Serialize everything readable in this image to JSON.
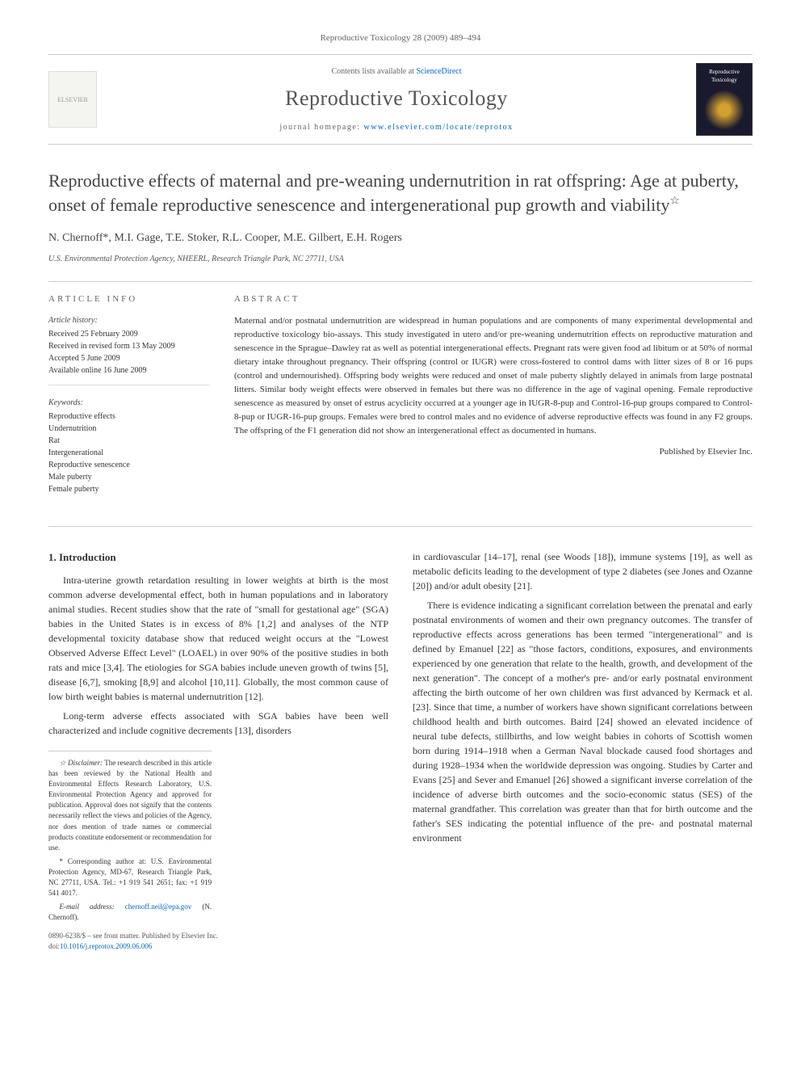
{
  "header": {
    "citation": "Reproductive Toxicology 28 (2009) 489–494",
    "contents_prefix": "Contents lists available at ",
    "contents_link": "ScienceDirect",
    "journal_name": "Reproductive Toxicology",
    "homepage_prefix": "journal homepage: ",
    "homepage_url": "www.elsevier.com/locate/reprotox",
    "publisher_logo_text": "ELSEVIER",
    "cover_label": "Reproductive Toxicology"
  },
  "article": {
    "title": "Reproductive effects of maternal and pre-weaning undernutrition in rat offspring: Age at puberty, onset of female reproductive senescence and intergenerational pup growth and viability",
    "title_marker": "☆",
    "authors": "N. Chernoff*, M.I. Gage, T.E. Stoker, R.L. Cooper, M.E. Gilbert, E.H. Rogers",
    "affiliation": "U.S. Environmental Protection Agency, NHEERL, Research Triangle Park, NC 27711, USA"
  },
  "article_info": {
    "heading": "ARTICLE INFO",
    "history_label": "Article history:",
    "history": [
      "Received 25 February 2009",
      "Received in revised form 13 May 2009",
      "Accepted 5 June 2009",
      "Available online 16 June 2009"
    ],
    "keywords_label": "Keywords:",
    "keywords": [
      "Reproductive effects",
      "Undernutrition",
      "Rat",
      "Intergenerational",
      "Reproductive senescence",
      "Male puberty",
      "Female puberty"
    ]
  },
  "abstract": {
    "heading": "ABSTRACT",
    "text": "Maternal and/or postnatal undernutrition are widespread in human populations and are components of many experimental developmental and reproductive toxicology bio-assays. This study investigated in utero and/or pre-weaning undernutrition effects on reproductive maturation and senescence in the Sprague–Dawley rat as well as potential intergenerational effects. Pregnant rats were given food ad libitum or at 50% of normal dietary intake throughout pregnancy. Their offspring (control or IUGR) were cross-fostered to control dams with litter sizes of 8 or 16 pups (control and undernourished). Offspring body weights were reduced and onset of male puberty slightly delayed in animals from large postnatal litters. Similar body weight effects were observed in females but there was no difference in the age of vaginal opening. Female reproductive senescence as measured by onset of estrus acyclicity occurred at a younger age in IUGR-8-pup and Control-16-pup groups compared to Control-8-pup or IUGR-16-pup groups. Females were bred to control males and no evidence of adverse reproductive effects was found in any F2 groups. The offspring of the F1 generation did not show an intergenerational effect as documented in humans.",
    "publisher": "Published by Elsevier Inc."
  },
  "body": {
    "section1_heading": "1. Introduction",
    "p1": "Intra-uterine growth retardation resulting in lower weights at birth is the most common adverse developmental effect, both in human populations and in laboratory animal studies. Recent studies show that the rate of \"small for gestational age\" (SGA) babies in the United States is in excess of 8% [1,2] and analyses of the NTP developmental toxicity database show that reduced weight occurs at the \"Lowest Observed Adverse Effect Level\" (LOAEL) in over 90% of the positive studies in both rats and mice [3,4]. The etiologies for SGA babies include uneven growth of twins [5], disease [6,7], smoking [8,9] and alcohol [10,11]. Globally, the most common cause of low birth weight babies is maternal undernutrition [12].",
    "p2": "Long-term adverse effects associated with SGA babies have been well characterized and include cognitive decrements [13], disorders",
    "p3": "in cardiovascular [14–17], renal (see Woods [18]), immune systems [19], as well as metabolic deficits leading to the development of type 2 diabetes (see Jones and Ozanne [20]) and/or adult obesity [21].",
    "p4": "There is evidence indicating a significant correlation between the prenatal and early postnatal environments of women and their own pregnancy outcomes. The transfer of reproductive effects across generations has been termed \"intergenerational\" and is defined by Emanuel [22] as \"those factors, conditions, exposures, and environments experienced by one generation that relate to the health, growth, and development of the next generation\". The concept of a mother's pre- and/or early postnatal environment affecting the birth outcome of her own children was first advanced by Kermack et al. [23]. Since that time, a number of workers have shown significant correlations between childhood health and birth outcomes. Baird [24] showed an elevated incidence of neural tube defects, stillbirths, and low weight babies in cohorts of Scottish women born during 1914–1918 when a German Naval blockade caused food shortages and during 1928–1934 when the worldwide depression was ongoing. Studies by Carter and Evans [25] and Sever and Emanuel [26] showed a significant inverse correlation of the incidence of adverse birth outcomes and the socio-economic status (SES) of the maternal grandfather. This correlation was greater than that for birth outcome and the father's SES indicating the potential influence of the pre- and postnatal maternal environment"
  },
  "footnotes": {
    "disclaimer_label": "☆ Disclaimer:",
    "disclaimer": "The research described in this article has been reviewed by the National Health and Environmental Effects Research Laboratory, U.S. Environmental Protection Agency and approved for publication. Approval does not signify that the contents necessarily reflect the views and policies of the Agency, nor does mention of trade names or commercial products constitute endorsement or recommendation for use.",
    "corresponding_label": "* Corresponding author at:",
    "corresponding": "U.S. Environmental Protection Agency, MD-67, Research Triangle Park, NC 27711, USA. Tel.: +1 919 541 2651; fax: +1 919 541 4017.",
    "email_label": "E-mail address:",
    "email": "chernoff.neil@epa.gov",
    "email_person": "(N. Chernoff)."
  },
  "footer": {
    "issn_line": "0890-6238/$ – see front matter. Published by Elsevier Inc.",
    "doi_prefix": "doi:",
    "doi": "10.1016/j.reprotox.2009.06.006"
  },
  "colors": {
    "text": "#333333",
    "heading": "#444444",
    "link": "#0066cc",
    "border": "#cccccc",
    "muted": "#666666"
  }
}
